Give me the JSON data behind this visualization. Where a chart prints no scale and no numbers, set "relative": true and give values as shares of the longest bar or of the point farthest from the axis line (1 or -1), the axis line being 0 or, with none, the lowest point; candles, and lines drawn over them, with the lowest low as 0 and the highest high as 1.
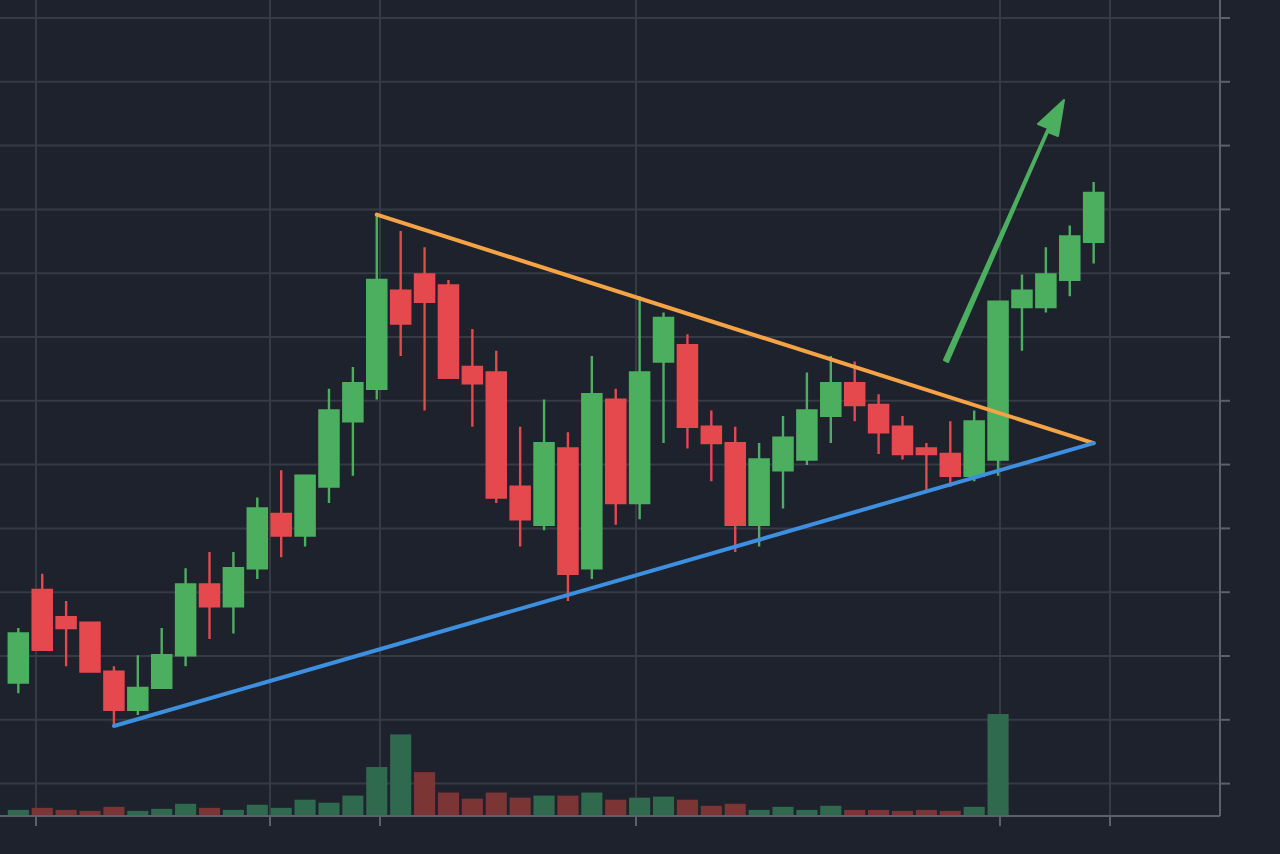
{
  "chart_data": [
    {
      "type": "candlestick",
      "relative": true,
      "grid": true,
      "categories": [
        null,
        null,
        null,
        null,
        null,
        null,
        null,
        null,
        null,
        null,
        null,
        null,
        null,
        null,
        null,
        null,
        null,
        null,
        null,
        null,
        null,
        null,
        null,
        null,
        null,
        null,
        null,
        null,
        null,
        null,
        null,
        null,
        null,
        null,
        null,
        null,
        null,
        null,
        null,
        null,
        null,
        null,
        null,
        null,
        null,
        null
      ],
      "ohlc": [
        [
          0.08,
          0.18,
          0.06,
          0.17
        ],
        [
          0.25,
          0.28,
          0.14,
          0.14
        ],
        [
          0.2,
          0.23,
          0.11,
          0.18
        ],
        [
          0.19,
          0.19,
          0.1,
          0.1
        ],
        [
          0.1,
          0.11,
          0,
          0.03
        ],
        [
          0.03,
          0.13,
          0.02,
          0.07
        ],
        [
          0.07,
          0.18,
          0.07,
          0.13
        ],
        [
          0.13,
          0.29,
          0.11,
          0.26
        ],
        [
          0.26,
          0.32,
          0.16,
          0.22
        ],
        [
          0.22,
          0.32,
          0.17,
          0.29
        ],
        [
          0.29,
          0.42,
          0.27,
          0.4
        ],
        [
          0.39,
          0.47,
          0.31,
          0.35
        ],
        [
          0.35,
          0.46,
          0.33,
          0.46
        ],
        [
          0.44,
          0.62,
          0.41,
          0.58
        ],
        [
          0.56,
          0.66,
          0.46,
          0.63
        ],
        [
          0.62,
          0.94,
          0.6,
          0.82
        ],
        [
          0.8,
          0.91,
          0.68,
          0.74
        ],
        [
          0.83,
          0.88,
          0.58,
          0.78
        ],
        [
          0.81,
          0.82,
          0.64,
          0.64
        ],
        [
          0.66,
          0.73,
          0.55,
          0.63
        ],
        [
          0.65,
          0.69,
          0.41,
          0.42
        ],
        [
          0.44,
          0.55,
          0.33,
          0.38
        ],
        [
          0.37,
          0.6,
          0.36,
          0.52
        ],
        [
          0.51,
          0.54,
          0.23,
          0.28
        ],
        [
          0.29,
          0.68,
          0.27,
          0.61
        ],
        [
          0.6,
          0.62,
          0.37,
          0.41
        ],
        [
          0.41,
          0.79,
          0.38,
          0.65
        ],
        [
          0.67,
          0.76,
          0.52,
          0.75
        ],
        [
          0.7,
          0.72,
          0.51,
          0.55
        ],
        [
          0.55,
          0.58,
          0.45,
          0.52
        ],
        [
          0.52,
          0.55,
          0.32,
          0.37
        ],
        [
          0.37,
          0.52,
          0.33,
          0.49
        ],
        [
          0.47,
          0.57,
          0.4,
          0.53
        ],
        [
          0.49,
          0.65,
          0.48,
          0.58
        ],
        [
          0.57,
          0.68,
          0.52,
          0.63
        ],
        [
          0.63,
          0.67,
          0.56,
          0.59
        ],
        [
          0.59,
          0.61,
          0.5,
          0.54
        ],
        [
          0.55,
          0.57,
          0.49,
          0.5
        ],
        [
          0.51,
          0.52,
          0.43,
          0.5
        ],
        [
          0.5,
          0.56,
          0.44,
          0.46
        ],
        [
          0.46,
          0.58,
          0.45,
          0.56
        ],
        [
          0.49,
          0.78,
          0.46,
          0.78
        ],
        [
          0.77,
          0.83,
          0.69,
          0.8
        ],
        [
          0.77,
          0.88,
          0.76,
          0.83
        ],
        [
          0.82,
          0.92,
          0.79,
          0.9
        ],
        [
          0.89,
          1,
          0.85,
          0.98
        ]
      ],
      "colors": [
        "#4caf5f",
        "#e5484d",
        "#e5484d",
        "#e5484d",
        "#e5484d",
        "#4caf5f",
        "#4caf5f",
        "#4caf5f",
        "#e5484d",
        "#4caf5f",
        "#4caf5f",
        "#e5484d",
        "#4caf5f",
        "#4caf5f",
        "#4caf5f",
        "#4caf5f",
        "#e5484d",
        "#e5484d",
        "#e5484d",
        "#e5484d",
        "#e5484d",
        "#e5484d",
        "#4caf5f",
        "#e5484d",
        "#4caf5f",
        "#e5484d",
        "#4caf5f",
        "#4caf5f",
        "#e5484d",
        "#e5484d",
        "#e5484d",
        "#4caf5f",
        "#4caf5f",
        "#4caf5f",
        "#4caf5f",
        "#e5484d",
        "#e5484d",
        "#e5484d",
        "#e5484d",
        "#e5484d",
        "#4caf5f",
        "#4caf5f",
        "#4caf5f",
        "#4caf5f",
        "#4caf5f",
        "#4caf5f"
      ],
      "series": [
        {
          "type": "line",
          "values": [
            null,
            null,
            null,
            null,
            null,
            null,
            null,
            null,
            null,
            null,
            null,
            null,
            null,
            null,
            null,
            0.94,
            null,
            null,
            null,
            null,
            null,
            null,
            null,
            null,
            null,
            null,
            null,
            null,
            null,
            null,
            null,
            null,
            null,
            null,
            null,
            null,
            null,
            null,
            null,
            null,
            null,
            null,
            null,
            null,
            null,
            0.52
          ],
          "color": "#f5a345"
        },
        {
          "type": "line",
          "values": [
            null,
            null,
            null,
            null,
            0,
            null,
            null,
            null,
            null,
            null,
            null,
            null,
            null,
            null,
            null,
            null,
            null,
            null,
            null,
            null,
            null,
            null,
            null,
            null,
            null,
            null,
            null,
            null,
            null,
            null,
            null,
            null,
            null,
            null,
            null,
            null,
            null,
            null,
            null,
            null,
            null,
            null,
            null,
            null,
            null,
            0.52
          ],
          "color": "#3d8fe0"
        }
      ]
    },
    {
      "type": "bar",
      "relative": true,
      "categories": [
        null,
        null,
        null,
        null,
        null,
        null,
        null,
        null,
        null,
        null,
        null,
        null,
        null,
        null,
        null,
        null,
        null,
        null,
        null,
        null,
        null,
        null,
        null,
        null,
        null,
        null,
        null,
        null,
        null,
        null,
        null,
        null,
        null,
        null,
        null,
        null,
        null,
        null,
        null,
        null,
        null,
        null,
        null,
        null,
        null,
        null
      ],
      "values": [
        0.06,
        0.08,
        0.06,
        0.05,
        0.09,
        0.05,
        0.07,
        0.12,
        0.08,
        0.06,
        0.11,
        0.08,
        0.16,
        0.13,
        0.2,
        0.48,
        0.8,
        0.43,
        0.23,
        0.17,
        0.23,
        0.18,
        0.2,
        0.2,
        0.23,
        0.16,
        0.18,
        0.19,
        0.16,
        0.1,
        0.12,
        0.06,
        0.09,
        0.06,
        0.1,
        0.06,
        0.06,
        0.05,
        0.06,
        0.05,
        0.09,
        1,
        null,
        null,
        null,
        null
      ],
      "colors": [
        "#2f6a4f",
        "#7b3535",
        "#7b3535",
        "#7b3535",
        "#7b3535",
        "#2f6a4f",
        "#2f6a4f",
        "#2f6a4f",
        "#7b3535",
        "#2f6a4f",
        "#2f6a4f",
        "#2f6a4f",
        "#2f6a4f",
        "#2f6a4f",
        "#2f6a4f",
        "#2f6a4f",
        "#2f6a4f",
        "#7b3535",
        "#7b3535",
        "#7b3535",
        "#7b3535",
        "#7b3535",
        "#2f6a4f",
        "#7b3535",
        "#2f6a4f",
        "#7b3535",
        "#2f6a4f",
        "#2f6a4f",
        "#7b3535",
        "#7b3535",
        "#7b3535",
        "#2f6a4f",
        "#2f6a4f",
        "#2f6a4f",
        "#2f6a4f",
        "#7b3535",
        "#7b3535",
        "#7b3535",
        "#7b3535",
        "#7b3535",
        "#2f6a4f",
        "#2f6a4f",
        null,
        null,
        null,
        null
      ]
    }
  ]
}
